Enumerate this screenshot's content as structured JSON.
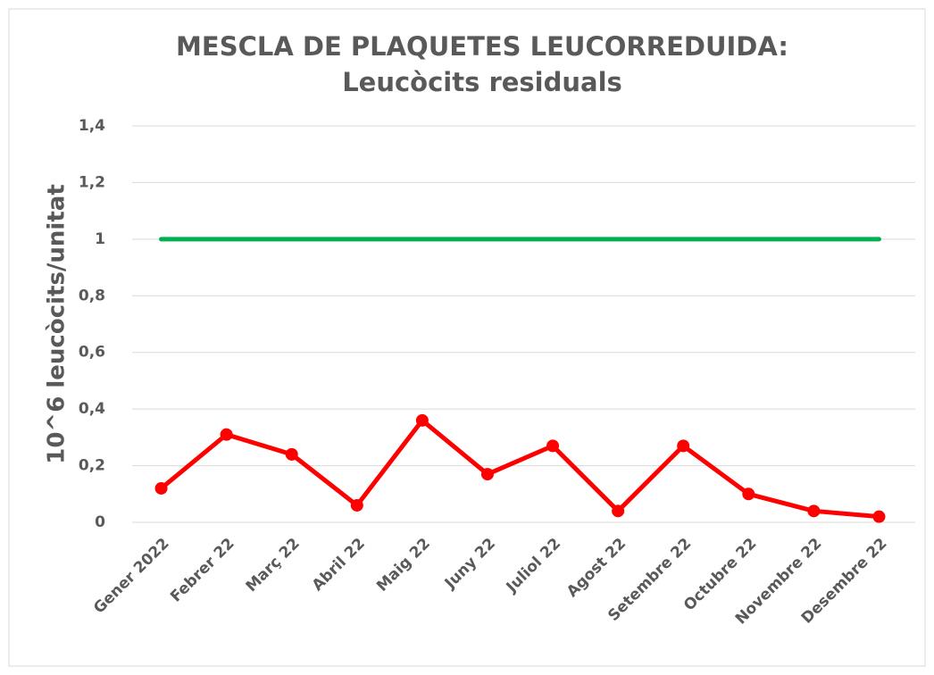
{
  "chart_data": {
    "type": "line",
    "title": "MESCLA DE PLAQUETES LEUCORREDUIDA:",
    "subtitle": "Leucòcits residuals",
    "y_label": "10^6 leucòcits/unitat",
    "categories": [
      "Gener 2022",
      "Febrer 22",
      "Març 22",
      "Abril 22",
      "Maig 22",
      "Juny 22",
      "Juliol 22",
      "Agost 22",
      "Setembre 22",
      "Octubre 22",
      "Novembre 22",
      "Desembre 22"
    ],
    "series": [
      {
        "color": "#00b050",
        "markers": false,
        "values": [
          1,
          1,
          1,
          1,
          1,
          1,
          1,
          1,
          1,
          1,
          1,
          1
        ]
      },
      {
        "color": "#ff0000",
        "markers": true,
        "values": [
          0.12,
          0.31,
          0.24,
          0.06,
          0.36,
          0.17,
          0.27,
          0.04,
          0.27,
          0.1,
          0.04,
          0.02
        ]
      }
    ],
    "ylim": [
      0,
      1.4
    ],
    "yticks": [
      0,
      {
        "value": 0.2,
        "label": "0,2"
      },
      {
        "value": 0.4,
        "label": "0,4"
      },
      {
        "value": 0.6,
        "label": "0,6"
      },
      {
        "value": 0.8,
        "label": "0,8"
      },
      1,
      {
        "value": 1.2,
        "label": "1,2"
      },
      {
        "value": 1.4,
        "label": "1,4"
      }
    ],
    "grid": true
  }
}
